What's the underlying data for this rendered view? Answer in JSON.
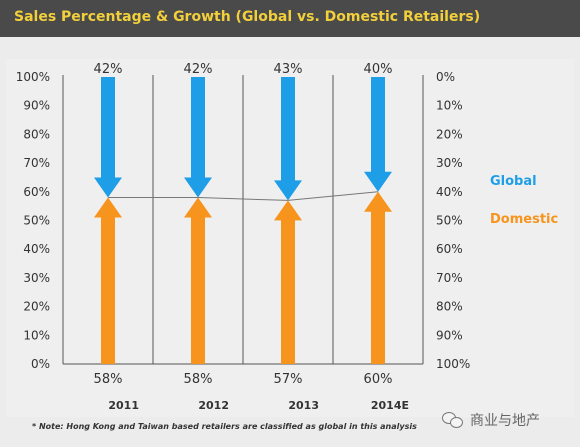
{
  "title": "Sales Percentage & Growth (Global vs. Domestic Retailers)",
  "note": "* Note: Hong Kong and Taiwan based retailers are classified as global in this analysis",
  "watermark": "商业与地产",
  "chart_data": {
    "type": "bar",
    "categories": [
      "2011",
      "2012",
      "2013",
      "2014E"
    ],
    "series": [
      {
        "name": "Global",
        "values": [
          42,
          42,
          43,
          40
        ],
        "color": "#1f9ee8"
      },
      {
        "name": "Domestic",
        "values": [
          58,
          58,
          57,
          60
        ],
        "color": "#f7941d"
      }
    ],
    "global_labels": [
      "42%",
      "42%",
      "43%",
      "40%"
    ],
    "domestic_labels": [
      "58%",
      "58%",
      "57%",
      "60%"
    ],
    "left_axis_ticks": [
      "0%",
      "10%",
      "20%",
      "30%",
      "40%",
      "50%",
      "60%",
      "70%",
      "80%",
      "90%",
      "100%"
    ],
    "right_axis_ticks": [
      "0%",
      "10%",
      "20%",
      "30%",
      "40%",
      "50%",
      "60%",
      "70%",
      "80%",
      "90%",
      "100%"
    ],
    "ylim": [
      0,
      100
    ],
    "legend_position": "right",
    "trend_line": true
  }
}
